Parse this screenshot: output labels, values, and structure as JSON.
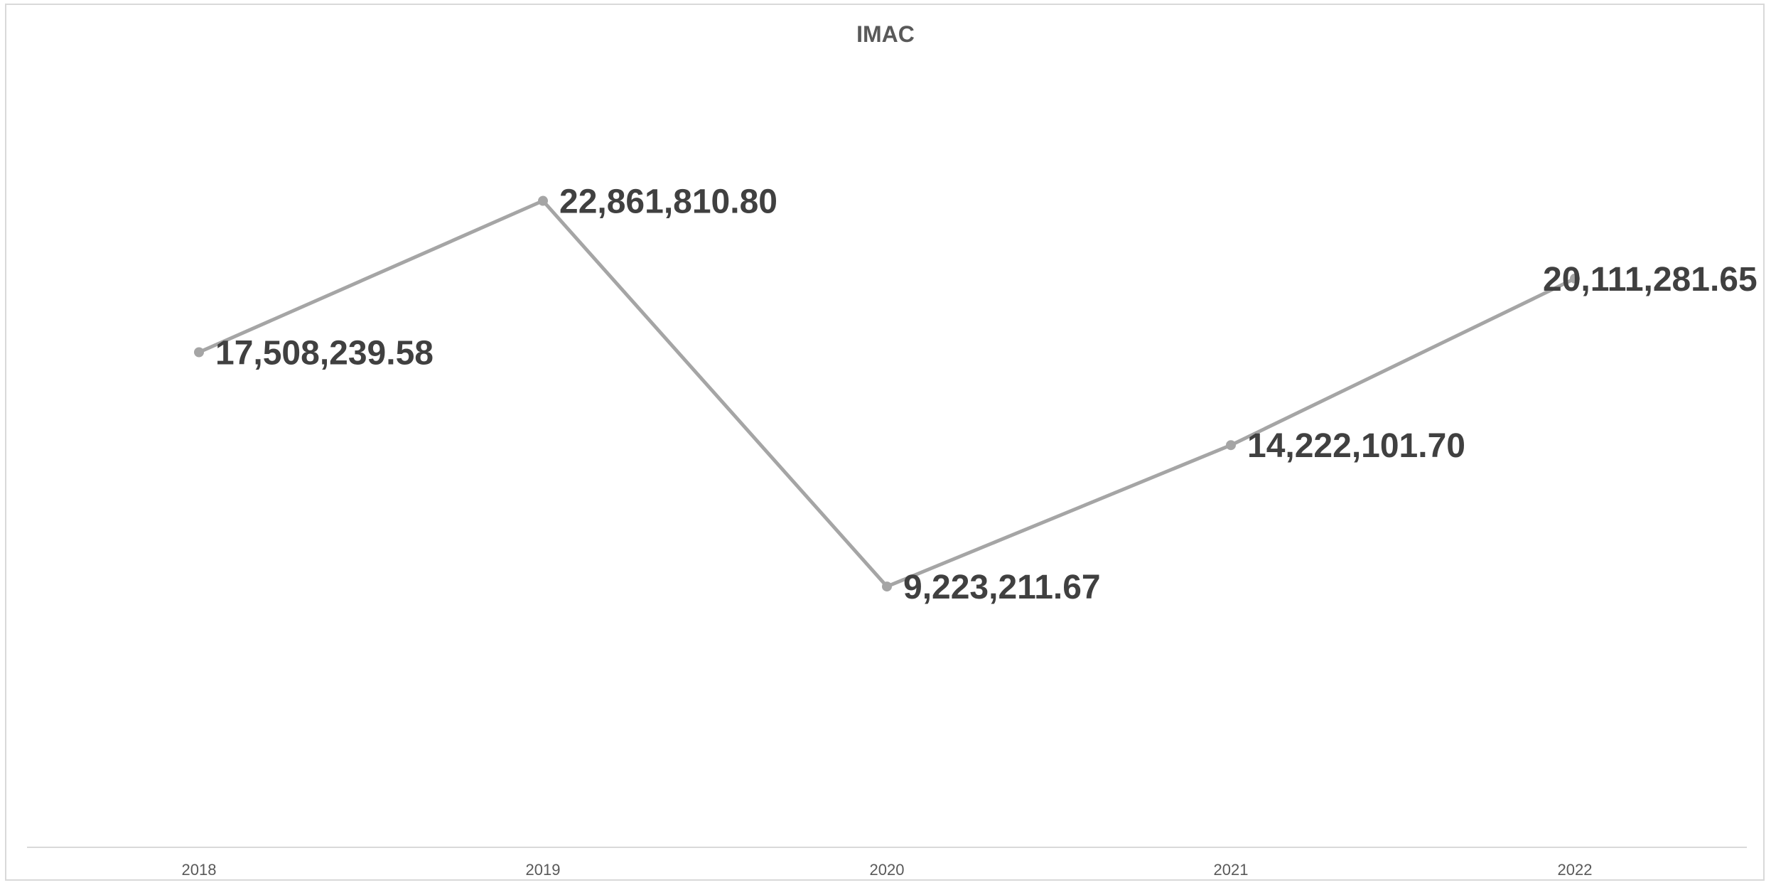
{
  "chart_data": {
    "type": "line",
    "title": "IMAC",
    "xlabel": "",
    "ylabel": "",
    "categories": [
      "2018",
      "2019",
      "2020",
      "2021",
      "2022"
    ],
    "series": [
      {
        "values": [
          17508239.58,
          22861810.8,
          9223211.67,
          14222101.7,
          20111281.65
        ],
        "data_labels": [
          "17,508,239.58",
          "22,861,810.80",
          "9,223,211.67",
          "14,222,101.70",
          "20,111,281.65"
        ],
        "color": "#a5a5a5"
      }
    ],
    "ylim": [
      0,
      27500000
    ],
    "grid": false,
    "legend": "none",
    "axis_color": "#d9d9d9",
    "text_color": "#595959",
    "label_color": "#404040"
  }
}
